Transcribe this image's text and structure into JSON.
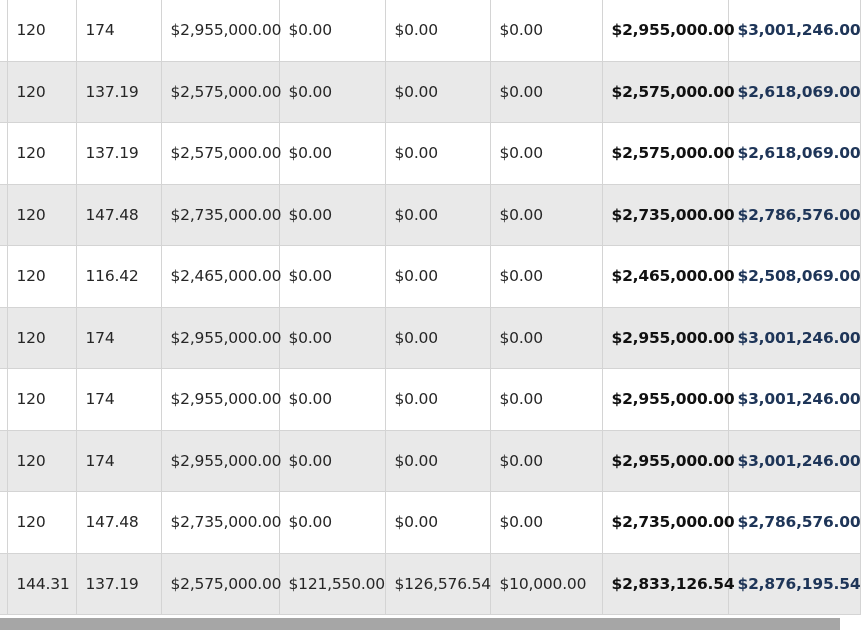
{
  "table": {
    "rows": [
      {
        "c1": "120",
        "c2": "174",
        "c3": "$2,955,000.00",
        "c4": "$0.00",
        "c5": "$0.00",
        "c6": "$0.00",
        "c7": "$2,955,000.00",
        "c8": "$3,001,246.00"
      },
      {
        "c1": "120",
        "c2": "137.19",
        "c3": "$2,575,000.00",
        "c4": "$0.00",
        "c5": "$0.00",
        "c6": "$0.00",
        "c7": "$2,575,000.00",
        "c8": "$2,618,069.00"
      },
      {
        "c1": "120",
        "c2": "137.19",
        "c3": "$2,575,000.00",
        "c4": "$0.00",
        "c5": "$0.00",
        "c6": "$0.00",
        "c7": "$2,575,000.00",
        "c8": "$2,618,069.00"
      },
      {
        "c1": "120",
        "c2": "147.48",
        "c3": "$2,735,000.00",
        "c4": "$0.00",
        "c5": "$0.00",
        "c6": "$0.00",
        "c7": "$2,735,000.00",
        "c8": "$2,786,576.00"
      },
      {
        "c1": "120",
        "c2": "116.42",
        "c3": "$2,465,000.00",
        "c4": "$0.00",
        "c5": "$0.00",
        "c6": "$0.00",
        "c7": "$2,465,000.00",
        "c8": "$2,508,069.00"
      },
      {
        "c1": "120",
        "c2": "174",
        "c3": "$2,955,000.00",
        "c4": "$0.00",
        "c5": "$0.00",
        "c6": "$0.00",
        "c7": "$2,955,000.00",
        "c8": "$3,001,246.00"
      },
      {
        "c1": "120",
        "c2": "174",
        "c3": "$2,955,000.00",
        "c4": "$0.00",
        "c5": "$0.00",
        "c6": "$0.00",
        "c7": "$2,955,000.00",
        "c8": "$3,001,246.00"
      },
      {
        "c1": "120",
        "c2": "174",
        "c3": "$2,955,000.00",
        "c4": "$0.00",
        "c5": "$0.00",
        "c6": "$0.00",
        "c7": "$2,955,000.00",
        "c8": "$3,001,246.00"
      },
      {
        "c1": "120",
        "c2": "147.48",
        "c3": "$2,735,000.00",
        "c4": "$0.00",
        "c5": "$0.00",
        "c6": "$0.00",
        "c7": "$2,735,000.00",
        "c8": "$2,786,576.00"
      },
      {
        "c1": "144.31",
        "c2": "137.19",
        "c3": "$2,575,000.00",
        "c4": "$121,550.00",
        "c5": "$126,576.54",
        "c6": "$10,000.00",
        "c7": "$2,833,126.54",
        "c8": "$2,876,195.54"
      }
    ]
  }
}
